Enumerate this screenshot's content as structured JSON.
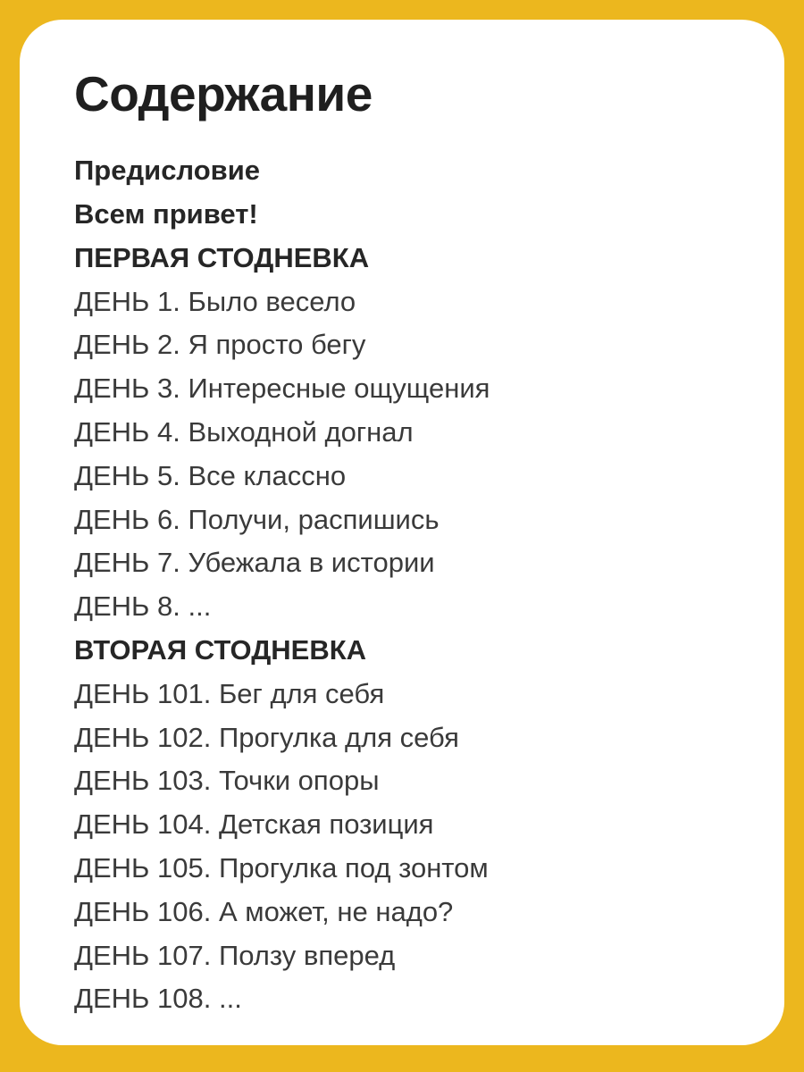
{
  "page": {
    "title": "Содержание"
  },
  "toc": {
    "items": [
      {
        "label": "Предисловие",
        "bold": true
      },
      {
        "label": "Всем привет!",
        "bold": true
      },
      {
        "label": "ПЕРВАЯ СТОДНЕВКА",
        "bold": true
      },
      {
        "label": "ДЕНЬ 1. Было весело",
        "bold": false
      },
      {
        "label": "ДЕНЬ 2. Я просто бегу",
        "bold": false
      },
      {
        "label": "ДЕНЬ 3. Интересные ощущения",
        "bold": false
      },
      {
        "label": "ДЕНЬ 4. Выходной догнал",
        "bold": false
      },
      {
        "label": "ДЕНЬ 5. Все классно",
        "bold": false
      },
      {
        "label": "ДЕНЬ 6. Получи, распишись",
        "bold": false
      },
      {
        "label": "ДЕНЬ 7. Убежала в истории",
        "bold": false
      },
      {
        "label": "ДЕНЬ 8. ...",
        "bold": false
      },
      {
        "label": "ВТОРАЯ СТОДНЕВКА",
        "bold": true
      },
      {
        "label": "ДЕНЬ 101. Бег для себя",
        "bold": false
      },
      {
        "label": "ДЕНЬ 102. Прогулка для себя",
        "bold": false
      },
      {
        "label": "ДЕНЬ 103. Точки опоры",
        "bold": false
      },
      {
        "label": "ДЕНЬ 104. Детская позиция",
        "bold": false
      },
      {
        "label": "ДЕНЬ 105. Прогулка под зонтом",
        "bold": false
      },
      {
        "label": "ДЕНЬ 106. А может, не надо?",
        "bold": false
      },
      {
        "label": "ДЕНЬ 107. Ползу вперед",
        "bold": false
      },
      {
        "label": "ДЕНЬ 108. ...",
        "bold": false
      }
    ]
  },
  "colors": {
    "background": "#ECB71E",
    "card": "#FFFFFF",
    "title_text": "#1F1F1F",
    "item_text": "#3A3A3A",
    "item_bold_text": "#262626"
  }
}
